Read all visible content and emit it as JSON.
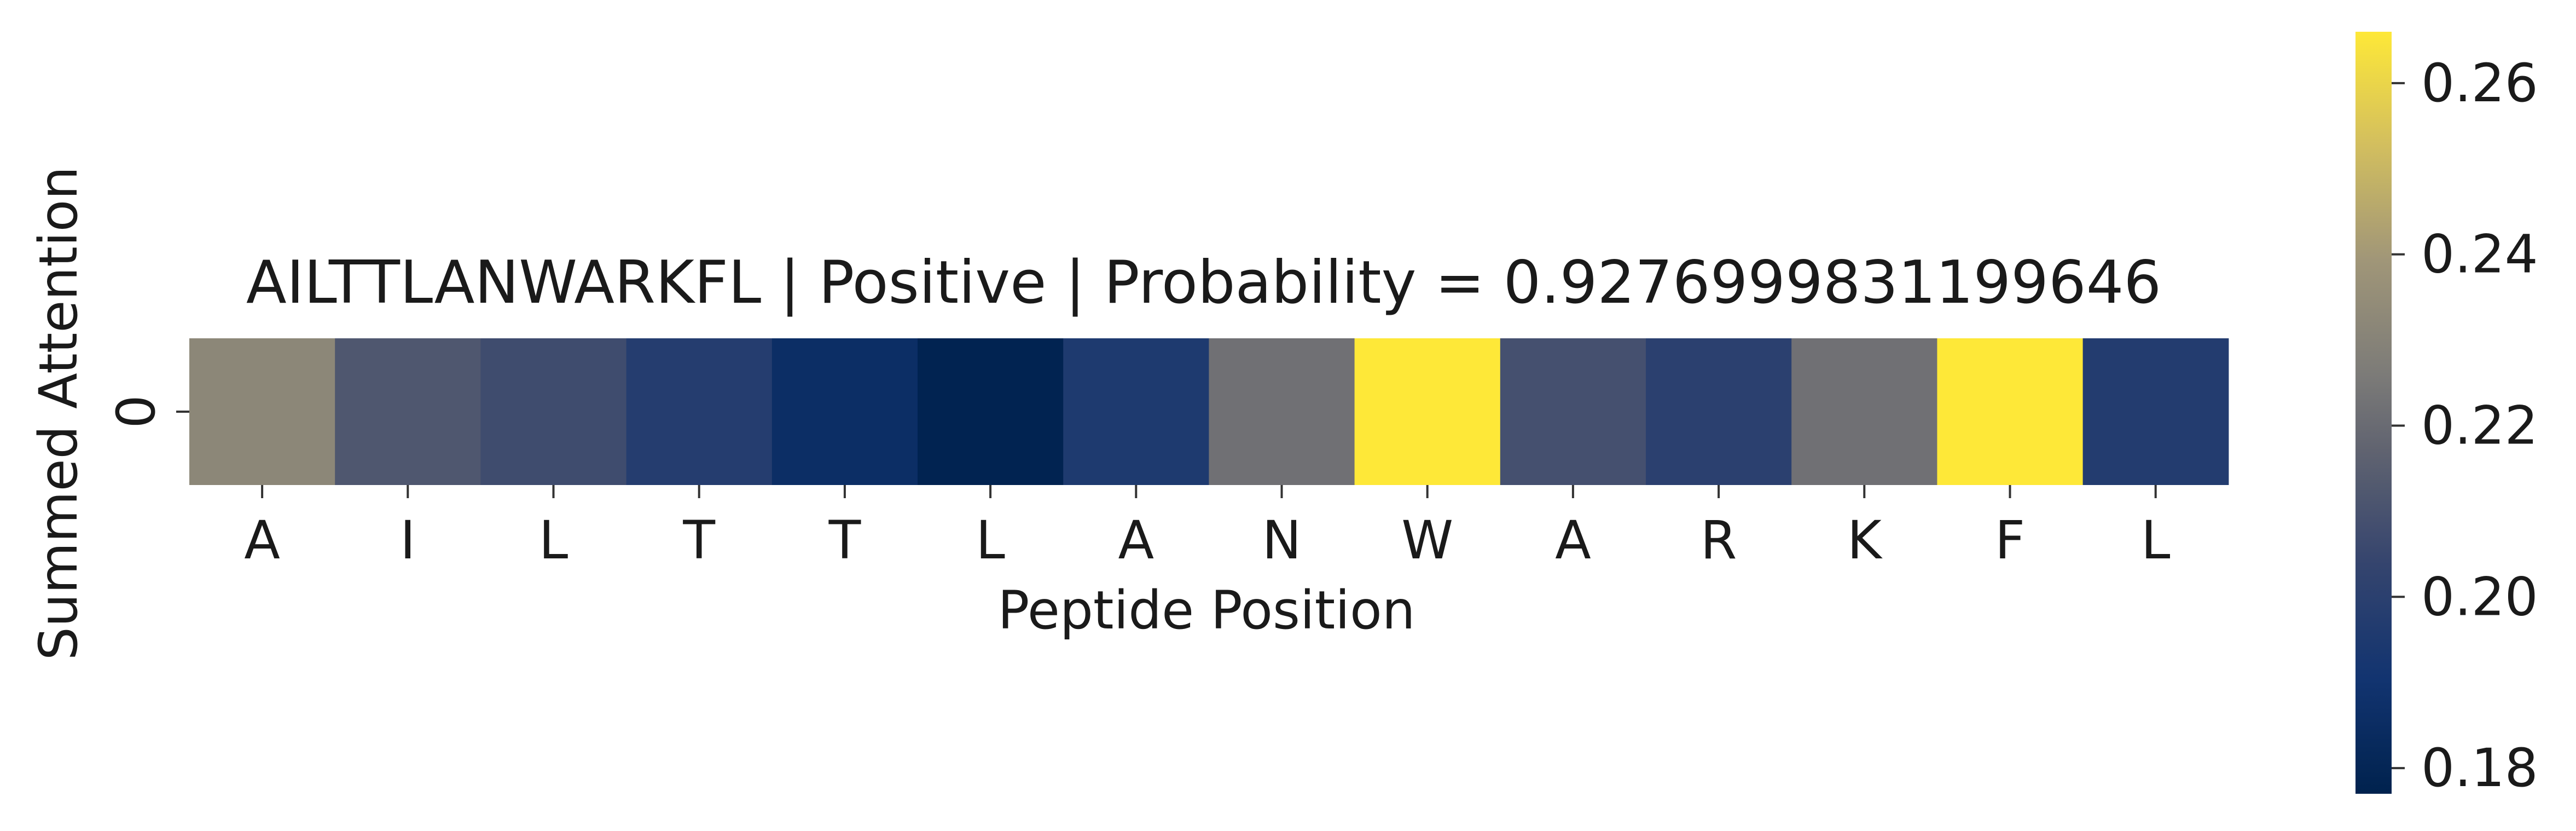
{
  "chart_data": {
    "type": "heatmap",
    "title": "AILTTLANWARKFL | Positive | Probability = 0.9276999831199646",
    "xlabel": "Peptide Position",
    "ylabel": "Summed Attention",
    "x_ticks": [
      "A",
      "I",
      "L",
      "T",
      "T",
      "L",
      "A",
      "N",
      "W",
      "A",
      "R",
      "K",
      "F",
      "L"
    ],
    "y_ticks": [
      "0"
    ],
    "values": [
      0.232,
      0.212,
      0.207,
      0.198,
      0.186,
      0.178,
      0.195,
      0.222,
      0.266,
      0.209,
      0.2,
      0.222,
      0.266,
      0.197
    ],
    "colormap": "cividis",
    "colorbar": {
      "min": 0.177,
      "max": 0.266,
      "ticks": [
        "0.18",
        "0.20",
        "0.22",
        "0.24",
        "0.26"
      ]
    },
    "grid": false
  }
}
